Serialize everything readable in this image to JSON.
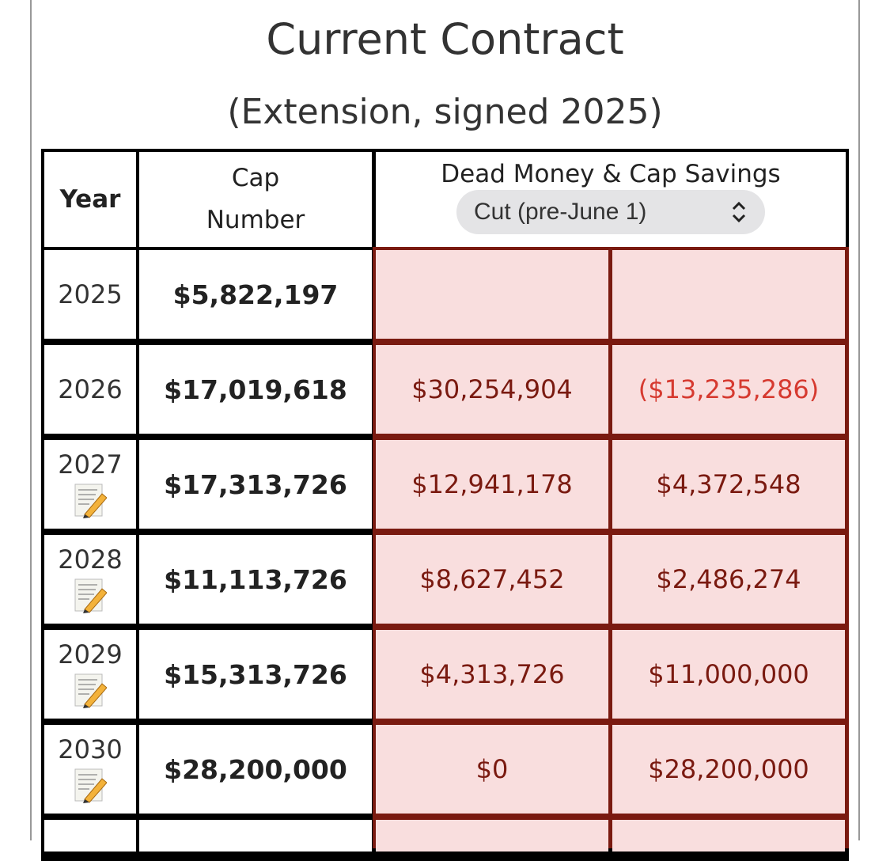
{
  "header": {
    "title": "Current Contract",
    "subtitle": "(Extension, signed 2025)"
  },
  "table": {
    "columns": {
      "year": "Year",
      "cap_number": "Cap Number",
      "dead_money": "Dead Money & Cap Savings",
      "scenario": "Cut (pre-June 1)"
    },
    "rows": [
      {
        "year": "2025",
        "cap_number": "$5,822,197"
      },
      {
        "year": "2026",
        "cap_number": "$17,019,618",
        "dead_money": "$30,254,904",
        "cap_savings": "($13,235,286)"
      },
      {
        "year": "2027",
        "cap_number": "$17,313,726",
        "dead_money": "$12,941,178",
        "cap_savings": "$4,372,548"
      },
      {
        "year": "2028",
        "cap_number": "$11,113,726",
        "dead_money": "$8,627,452",
        "cap_savings": "$2,486,274"
      },
      {
        "year": "2029",
        "cap_number": "$15,313,726",
        "dead_money": "$4,313,726",
        "cap_savings": "$11,000,000"
      },
      {
        "year": "2030",
        "cap_number": "$28,200,000",
        "dead_money": "$0",
        "cap_savings": "$28,200,000"
      }
    ]
  }
}
